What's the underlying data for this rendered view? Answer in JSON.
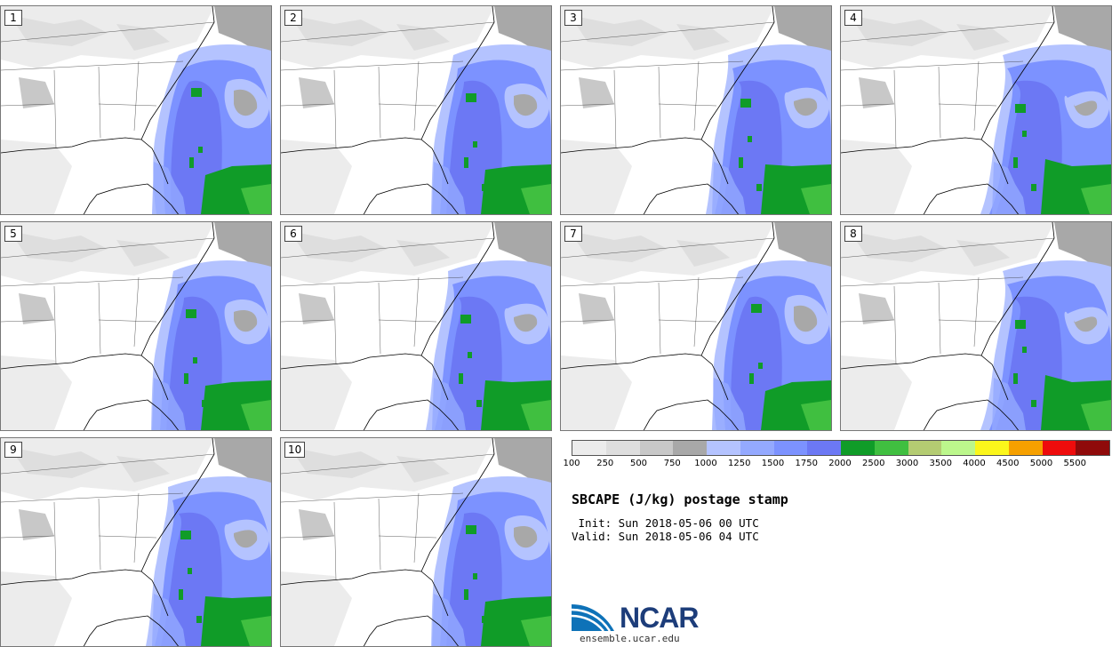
{
  "panels": [
    {
      "label": "1",
      "variant": 0
    },
    {
      "label": "2",
      "variant": 1
    },
    {
      "label": "3",
      "variant": 2
    },
    {
      "label": "4",
      "variant": 3
    },
    {
      "label": "5",
      "variant": 1
    },
    {
      "label": "6",
      "variant": 2
    },
    {
      "label": "7",
      "variant": 0
    },
    {
      "label": "8",
      "variant": 3
    },
    {
      "label": "9",
      "variant": 2
    },
    {
      "label": "10",
      "variant": 1
    }
  ],
  "colorbar": {
    "colors": [
      "#ececec",
      "#dedede",
      "#c8c8c8",
      "#a8a8a8",
      "#b4c3ff",
      "#94a9ff",
      "#7c92ff",
      "#6c78f4",
      "#109c28",
      "#40bf40",
      "#b4cc72",
      "#bcf78c",
      "#fbf61b",
      "#f6a000",
      "#ee0c0c",
      "#8f0a0a"
    ],
    "tick_labels": [
      "100",
      "250",
      "500",
      "750",
      "1000",
      "1250",
      "1500",
      "1750",
      "2000",
      "2500",
      "3000",
      "3500",
      "4000",
      "4500",
      "5000",
      "5500"
    ]
  },
  "title": "SBCAPE (J/kg) postage stamp",
  "init_line": " Init: Sun 2018-05-06 00 UTC",
  "valid_line": "Valid: Sun 2018-05-06 04 UTC",
  "logo": {
    "text": "NCAR",
    "colors": {
      "arc": "#0e72b8",
      "text": "#1d3d7a"
    }
  },
  "site": "ensemble.ucar.edu"
}
